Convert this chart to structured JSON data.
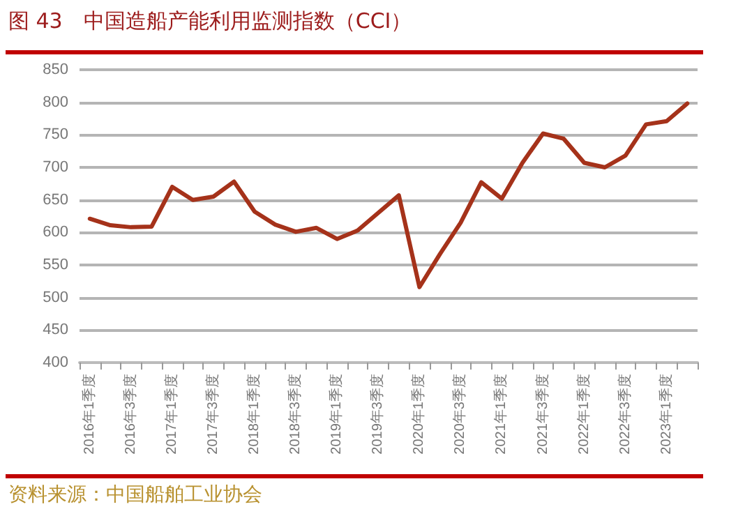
{
  "chart_data": {
    "type": "line",
    "title": "图 43　中国造船产能利用监测指数（CCI）",
    "annotations": [
      "资料来源：中国船舶工业协会"
    ],
    "categories": [
      "2016年1季度",
      null,
      "2016年3季度",
      null,
      "2017年1季度",
      null,
      "2017年3季度",
      null,
      "2018年1季度",
      null,
      "2018年3季度",
      null,
      "2019年1季度",
      null,
      "2019年3季度",
      null,
      "2020年1季度",
      null,
      "2020年3季度",
      null,
      "2021年1季度",
      null,
      "2021年3季度",
      null,
      "2022年1季度",
      null,
      "2022年3季度",
      null,
      "2023年1季度",
      null
    ],
    "series": [
      {
        "color": "#a5321a",
        "values": [
          621,
          611,
          608,
          609,
          670,
          650,
          655,
          678,
          632,
          612,
          601,
          607,
          590,
          603,
          630,
          657,
          516,
          567,
          615,
          677,
          652,
          707,
          752,
          744,
          707,
          700,
          718,
          766,
          771,
          798
        ]
      }
    ],
    "ylim": [
      400,
      850
    ],
    "yticks": [
      400,
      450,
      500,
      550,
      600,
      650,
      700,
      750,
      800,
      850
    ],
    "grid": "y",
    "marker": "none",
    "line_style": "solid"
  }
}
